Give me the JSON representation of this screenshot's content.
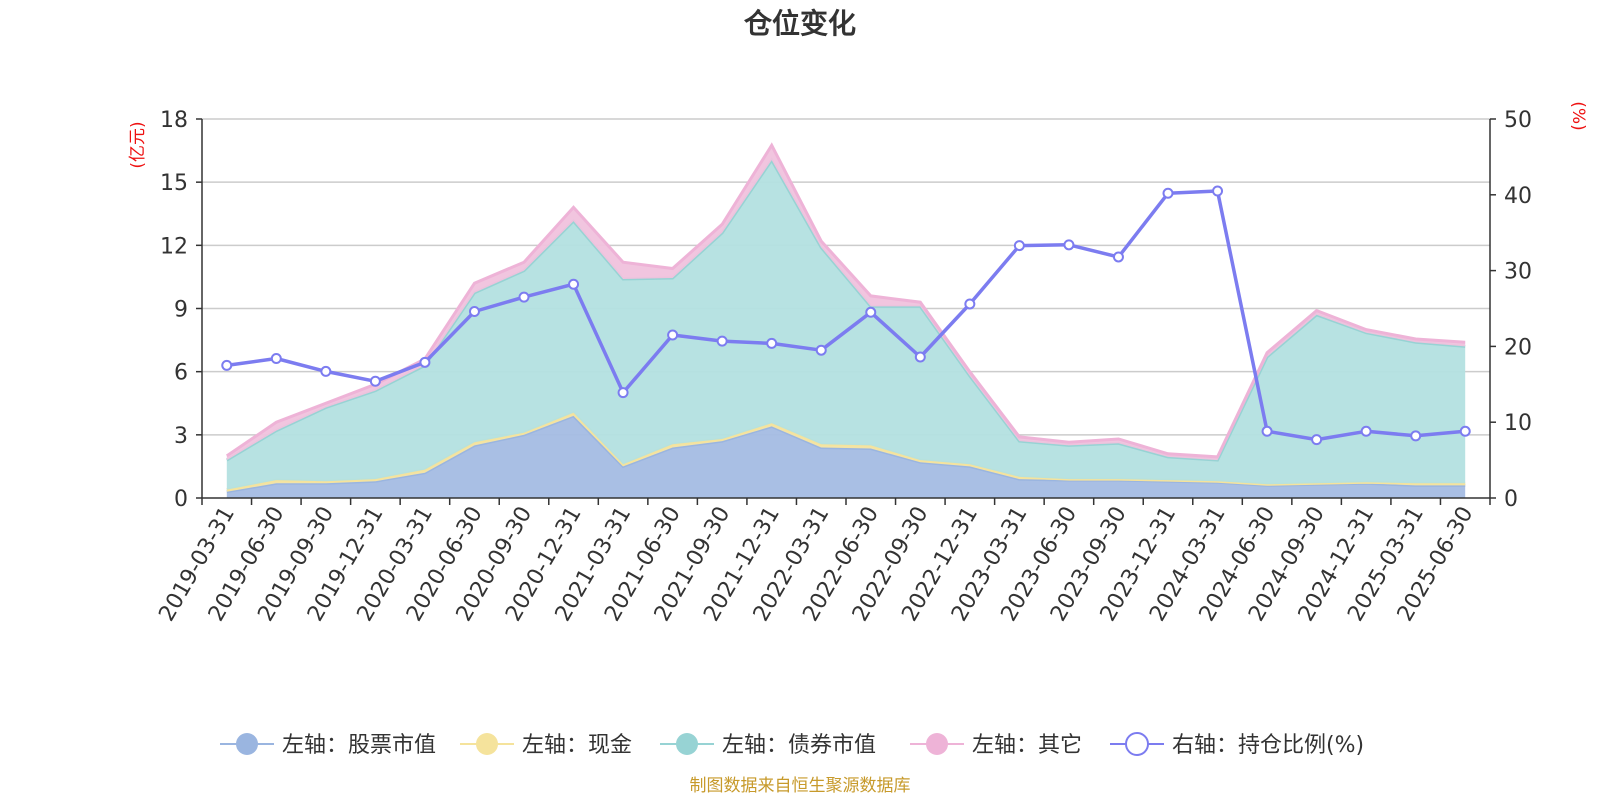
{
  "chart_data": {
    "type": "area",
    "title": "仓位变化",
    "left_axis": {
      "unit": "(亿元)",
      "min": 0,
      "max": 18,
      "ticks": [
        0,
        3,
        6,
        9,
        12,
        15,
        18
      ]
    },
    "right_axis": {
      "unit": "(%)",
      "min": 0,
      "max": 50,
      "ticks": [
        0,
        10,
        20,
        30,
        40,
        50
      ]
    },
    "categories": [
      "2019-03-31",
      "2019-06-30",
      "2019-09-30",
      "2019-12-31",
      "2020-03-31",
      "2020-06-30",
      "2020-09-30",
      "2020-12-31",
      "2021-03-31",
      "2021-06-30",
      "2021-09-30",
      "2021-12-31",
      "2022-03-31",
      "2022-06-30",
      "2022-09-30",
      "2022-12-31",
      "2023-03-31",
      "2023-06-30",
      "2023-09-30",
      "2023-12-31",
      "2024-03-31",
      "2024-06-30",
      "2024-09-30",
      "2024-12-31",
      "2025-03-31",
      "2025-06-30"
    ],
    "stacked": true,
    "series": [
      {
        "name": "左轴：股票市值",
        "axis": "left",
        "color": "#a4bce3",
        "line_color": "#9ab5e0",
        "values": [
          0.3,
          0.7,
          0.7,
          0.8,
          1.2,
          2.5,
          3.0,
          3.9,
          1.5,
          2.4,
          2.7,
          3.4,
          2.4,
          2.35,
          1.7,
          1.5,
          0.9,
          0.85,
          0.85,
          0.8,
          0.75,
          0.6,
          0.65,
          0.7,
          0.6,
          0.6
        ]
      },
      {
        "name": "左轴：现金",
        "axis": "left",
        "color": "#f7e6a3",
        "line_color": "#f5e39c",
        "values": [
          0.1,
          0.15,
          0.1,
          0.1,
          0.15,
          0.15,
          0.1,
          0.15,
          0.1,
          0.15,
          0.1,
          0.15,
          0.15,
          0.15,
          0.1,
          0.1,
          0.1,
          0.05,
          0.05,
          0.05,
          0.05,
          0.05,
          0.05,
          0.05,
          0.1,
          0.1
        ]
      },
      {
        "name": "左轴：债券市值",
        "axis": "left",
        "color": "#b3e0e0",
        "line_color": "#97d3d4",
        "values": [
          1.4,
          2.35,
          3.5,
          4.2,
          4.95,
          7.1,
          7.7,
          9.1,
          8.8,
          7.9,
          9.8,
          12.5,
          9.35,
          6.6,
          7.3,
          4.2,
          1.7,
          1.6,
          1.7,
          1.1,
          1.0,
          6.05,
          8.0,
          7.1,
          6.7,
          6.5
        ]
      },
      {
        "name": "左轴：其它",
        "axis": "left",
        "color": "#f0c2dd",
        "line_color": "#eeb3d7",
        "values": [
          0.2,
          0.4,
          0.2,
          0.3,
          0.3,
          0.45,
          0.4,
          0.65,
          0.8,
          0.45,
          0.4,
          0.7,
          0.3,
          0.5,
          0.2,
          0.2,
          0.2,
          0.15,
          0.2,
          0.15,
          0.15,
          0.2,
          0.2,
          0.15,
          0.15,
          0.2
        ]
      },
      {
        "name": "右轴：持仓比例(%)",
        "axis": "right",
        "color": "#7c7cf0",
        "values": [
          17.5,
          18.4,
          16.7,
          15.4,
          17.9,
          24.6,
          26.5,
          28.2,
          13.9,
          21.5,
          20.7,
          20.4,
          19.5,
          24.5,
          18.6,
          25.6,
          33.3,
          33.4,
          31.8,
          40.2,
          40.5,
          8.8,
          7.7,
          8.8,
          8.2,
          8.8
        ]
      }
    ],
    "grid": true,
    "legend_position": "bottom"
  },
  "footer": "制图数据来自恒生聚源数据库"
}
